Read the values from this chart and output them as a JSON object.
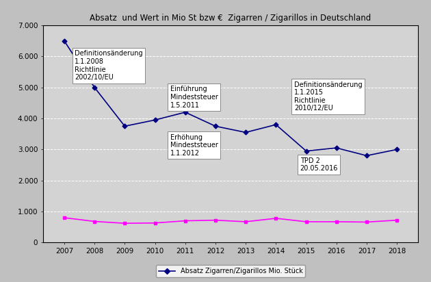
{
  "title": "Absatz  und Wert in Mio St bzw €  Zigarren / Zigarillos in Deutschland",
  "years": [
    2007,
    2008,
    2009,
    2010,
    2011,
    2012,
    2013,
    2014,
    2015,
    2016,
    2017,
    2018
  ],
  "blue_line": [
    6500,
    5000,
    3750,
    3950,
    4200,
    3750,
    3550,
    3800,
    2950,
    3050,
    2800,
    3000
  ],
  "pink_line": [
    800,
    680,
    620,
    630,
    700,
    720,
    670,
    780,
    670,
    670,
    660,
    720
  ],
  "blue_color": "#000080",
  "pink_color": "#FF00FF",
  "bg_color": "#C0C0C0",
  "plot_bg_color": "#D3D3D3",
  "ylim": [
    0,
    7000
  ],
  "yticks": [
    0,
    1000,
    2000,
    3000,
    4000,
    5000,
    6000,
    7000
  ],
  "ytick_labels": [
    "0",
    "1.000",
    "2.000",
    "3.000",
    "4.000",
    "5.000",
    "6.000",
    "7.000"
  ],
  "legend_label_blue": "Absatz Zigarren/Zigarillos Mio. Stück",
  "ann0_text": "Definitionsänderung\n1.1.2008\nRichtlinie\n2002/10/EU",
  "ann1_text": "Einführung\nMindeststeuer\n1.5.2011",
  "ann2_text": "Erhöhung\nMindeststeuer\n1.1.2012",
  "ann3_text": "Definitionsänderung\n1.1.2015\nRichtlinie\n2010/12/EU",
  "ann4_text": "TPD 2\n20.05.2016"
}
